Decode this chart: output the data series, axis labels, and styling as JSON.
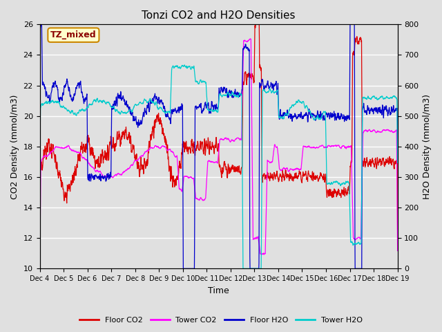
{
  "title": "Tonzi CO2 and H2O Densities",
  "xlabel": "Time",
  "ylabel_left": "CO2 Density (mmol/m3)",
  "ylabel_right": "H2O Density (mmol/m3)",
  "ylim_left": [
    10,
    26
  ],
  "ylim_right": [
    0,
    800
  ],
  "annotation_text": "TZ_mixed",
  "colors": {
    "floor_co2": "#dd0000",
    "tower_co2": "#ff00ff",
    "floor_h2o": "#0000cc",
    "tower_h2o": "#00cccc"
  },
  "bg_color": "#e0e0e0",
  "x_ticks": [
    "Dec 4",
    "Dec 5",
    "Dec 6",
    "Dec 7",
    "Dec 8",
    "Dec 9",
    "Dec 10",
    "Dec 11",
    "Dec 12",
    "Dec 13",
    "Dec 14",
    "Dec 15",
    "Dec 16",
    "Dec 17",
    "Dec 18",
    "Dec 19"
  ],
  "legend_labels": [
    "Floor CO2",
    "Tower CO2",
    "Floor H2O",
    "Tower H2O"
  ]
}
